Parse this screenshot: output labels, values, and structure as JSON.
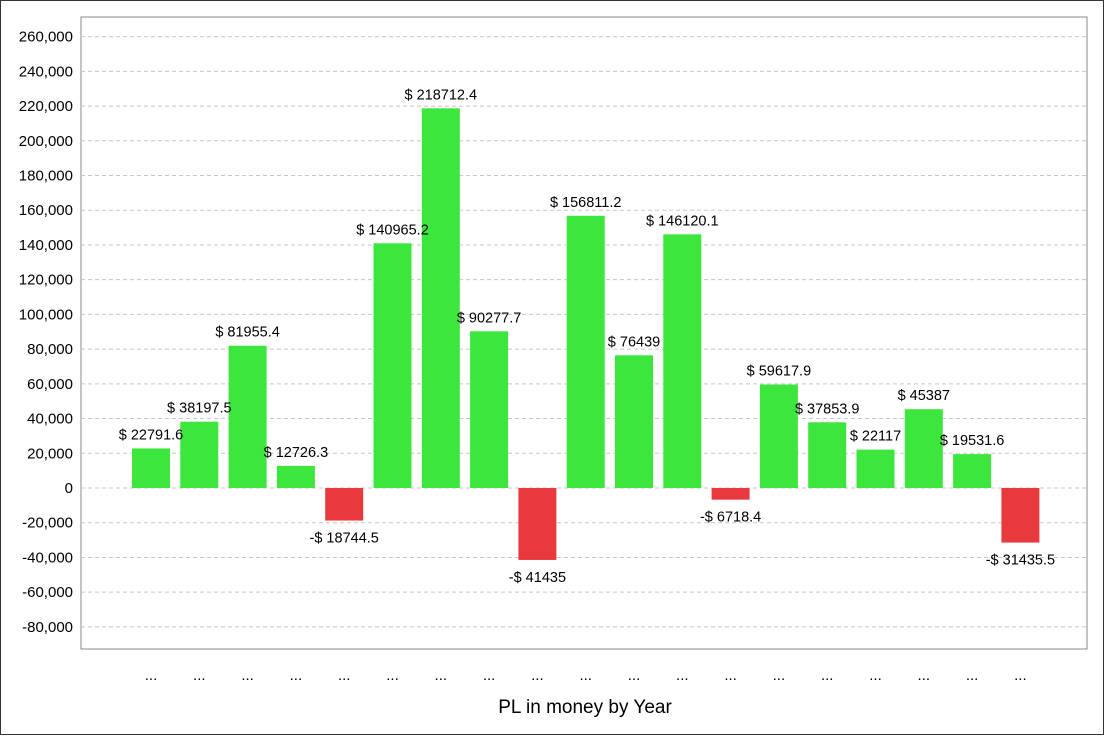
{
  "chart_data": {
    "type": "bar",
    "xlabel": "PL in money by Year",
    "ylabel": "",
    "ylim": [
      -95000,
      270000
    ],
    "yticks": [
      260000,
      240000,
      220000,
      200000,
      180000,
      160000,
      140000,
      120000,
      100000,
      80000,
      60000,
      40000,
      20000,
      0,
      -20000,
      -40000,
      -60000,
      -80000
    ],
    "ytick_labels": [
      "260,000",
      "240,000",
      "220,000",
      "200,000",
      "180,000",
      "160,000",
      "140,000",
      "120,000",
      "100,000",
      "80,000",
      "60,000",
      "40,000",
      "20,000",
      "0",
      "-20,000",
      "-40,000",
      "-60,000",
      "-80,000"
    ],
    "grid": true,
    "legend": "none",
    "colors": {
      "positive": "#3ce63c",
      "negative": "#e8393c"
    },
    "categories": [
      "...",
      "...",
      "...",
      "...",
      "...",
      "...",
      "...",
      "...",
      "...",
      "...",
      "...",
      "...",
      "...",
      "...",
      "...",
      "...",
      "...",
      "...",
      "..."
    ],
    "values": [
      22791.6,
      38197.5,
      81955.4,
      12726.3,
      -18744.5,
      140965.2,
      218712.4,
      90277.7,
      -41435,
      156811.2,
      76439,
      146120.1,
      -6718.4,
      59617.9,
      37853.9,
      22117,
      45387,
      19531.6,
      -31435.5
    ],
    "data_labels": [
      "$ 22791.6",
      "$ 38197.5",
      "$ 81955.4",
      "$ 12726.3",
      "-$ 18744.5",
      "$ 140965.2",
      "$ 218712.4",
      "$ 90277.7",
      "-$ 41435",
      "$ 156811.2",
      "$ 76439",
      "$ 146120.1",
      "-$ 6718.4",
      "$ 59617.9",
      "$ 37853.9",
      "$ 22117",
      "$ 45387",
      "$ 19531.6",
      "-$ 31435.5"
    ]
  }
}
